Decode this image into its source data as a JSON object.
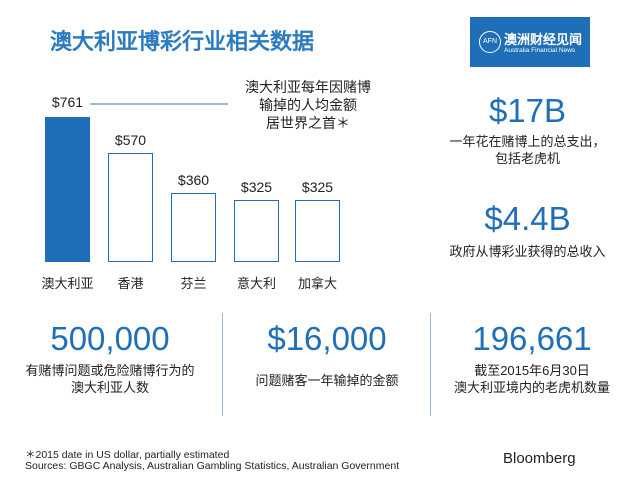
{
  "title": "澳大利亚博彩行业相关数据",
  "logo": {
    "mark": "AFN",
    "name_cn": "澳洲财经见闻",
    "name_en": "Australia Financial News"
  },
  "note": [
    "澳大利亚每年因赌博",
    "输掉的人均金额",
    "居世界之首＊"
  ],
  "chart_data": {
    "type": "bar",
    "categories": [
      "澳大利亚",
      "香港",
      "芬兰",
      "意大利",
      "加拿大"
    ],
    "values": [
      761,
      570,
      360,
      325,
      325
    ],
    "value_labels": [
      "$761",
      "$570",
      "$360",
      "$325",
      "$325"
    ],
    "highlight_color": "#1f6fb8",
    "other_color": "#ffffff",
    "outline_color": "#1f6fb8",
    "ylim": [
      0,
      761
    ],
    "grid": false
  },
  "stats_right": [
    {
      "value": "$17B",
      "caption": [
        "一年花在赌博上的总支出，",
        "包括老虎机"
      ]
    },
    {
      "value": "$4.4B",
      "caption": [
        "政府从博彩业获得的总收入"
      ]
    }
  ],
  "stats_bottom": [
    {
      "value": "500,000",
      "caption": [
        "有赌博问题或危险赌博行为的",
        "澳大利亚人数"
      ]
    },
    {
      "value": "$16,000",
      "caption": [
        "问题赌客一年输掉的金额"
      ]
    },
    {
      "value": "196,661",
      "caption": [
        "截至2015年6月30日",
        "澳大利亚境内的老虎机数量"
      ]
    }
  ],
  "footnote": "＊2015 date in US dollar, partially estimated",
  "sources": "Sources: GBGC Analysis, Australian Gambling Statistics, Australian Government",
  "brand": "Bloomberg",
  "accent": "#1f6fb8"
}
